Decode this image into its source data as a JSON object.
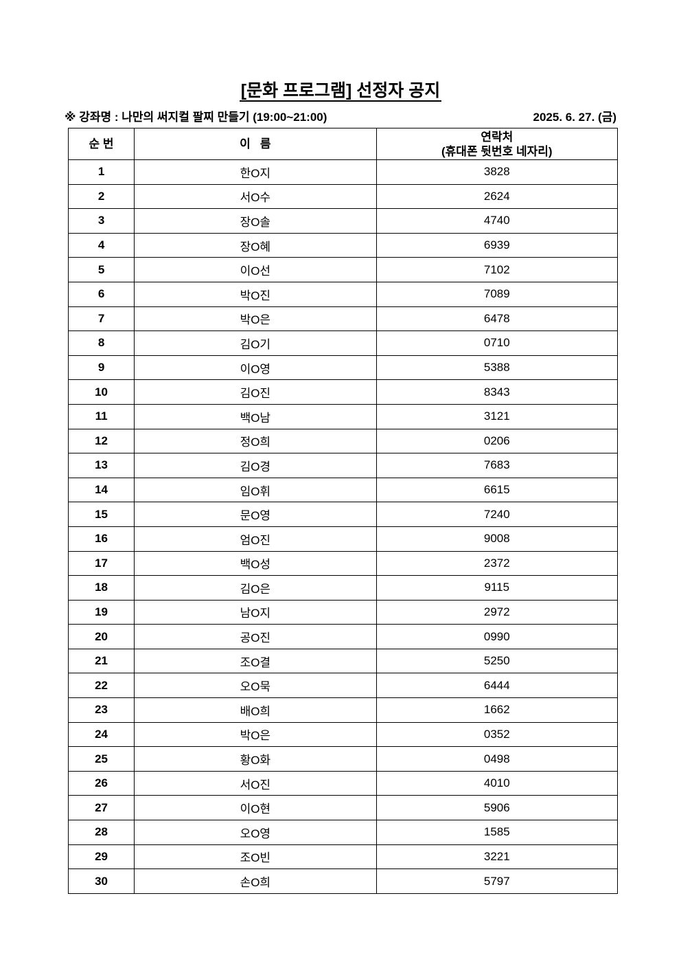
{
  "title": "[문화 프로그램] 선정자 공지",
  "course_line": "※ 강좌명 : 나만의 써지컬 팔찌 만들기 (19:00~21:00)",
  "date": "2025. 6. 27. (금)",
  "table": {
    "headers": {
      "no": "순 번",
      "name": "이   름",
      "contact": "연락처",
      "contact_sub": "(휴대폰 뒷번호 네자리)"
    },
    "rows": [
      {
        "no": "1",
        "name": "한O지",
        "phone": "3828"
      },
      {
        "no": "2",
        "name": "서O수",
        "phone": "2624"
      },
      {
        "no": "3",
        "name": "장O솔",
        "phone": "4740"
      },
      {
        "no": "4",
        "name": "장O혜",
        "phone": "6939"
      },
      {
        "no": "5",
        "name": "이O선",
        "phone": "7102"
      },
      {
        "no": "6",
        "name": "박O진",
        "phone": "7089"
      },
      {
        "no": "7",
        "name": "박O은",
        "phone": "6478"
      },
      {
        "no": "8",
        "name": "김O기",
        "phone": "0710"
      },
      {
        "no": "9",
        "name": "이O영",
        "phone": "5388"
      },
      {
        "no": "10",
        "name": "김O진",
        "phone": "8343"
      },
      {
        "no": "11",
        "name": "백O남",
        "phone": "3121"
      },
      {
        "no": "12",
        "name": "정O희",
        "phone": "0206"
      },
      {
        "no": "13",
        "name": "김O경",
        "phone": "7683"
      },
      {
        "no": "14",
        "name": "임O휘",
        "phone": "6615"
      },
      {
        "no": "15",
        "name": "문O영",
        "phone": "7240"
      },
      {
        "no": "16",
        "name": "엄O진",
        "phone": "9008"
      },
      {
        "no": "17",
        "name": "백O성",
        "phone": "2372"
      },
      {
        "no": "18",
        "name": "김O은",
        "phone": "9115"
      },
      {
        "no": "19",
        "name": "남O지",
        "phone": "2972"
      },
      {
        "no": "20",
        "name": "공O진",
        "phone": "0990"
      },
      {
        "no": "21",
        "name": "조O결",
        "phone": "5250"
      },
      {
        "no": "22",
        "name": "오O묵",
        "phone": "6444"
      },
      {
        "no": "23",
        "name": "배O희",
        "phone": "1662"
      },
      {
        "no": "24",
        "name": "박O은",
        "phone": "0352"
      },
      {
        "no": "25",
        "name": "황O화",
        "phone": "0498"
      },
      {
        "no": "26",
        "name": "서O진",
        "phone": "4010"
      },
      {
        "no": "27",
        "name": "이O현",
        "phone": "5906"
      },
      {
        "no": "28",
        "name": "오O영",
        "phone": "1585"
      },
      {
        "no": "29",
        "name": "조O빈",
        "phone": "3221"
      },
      {
        "no": "30",
        "name": "손O희",
        "phone": "5797"
      }
    ]
  }
}
